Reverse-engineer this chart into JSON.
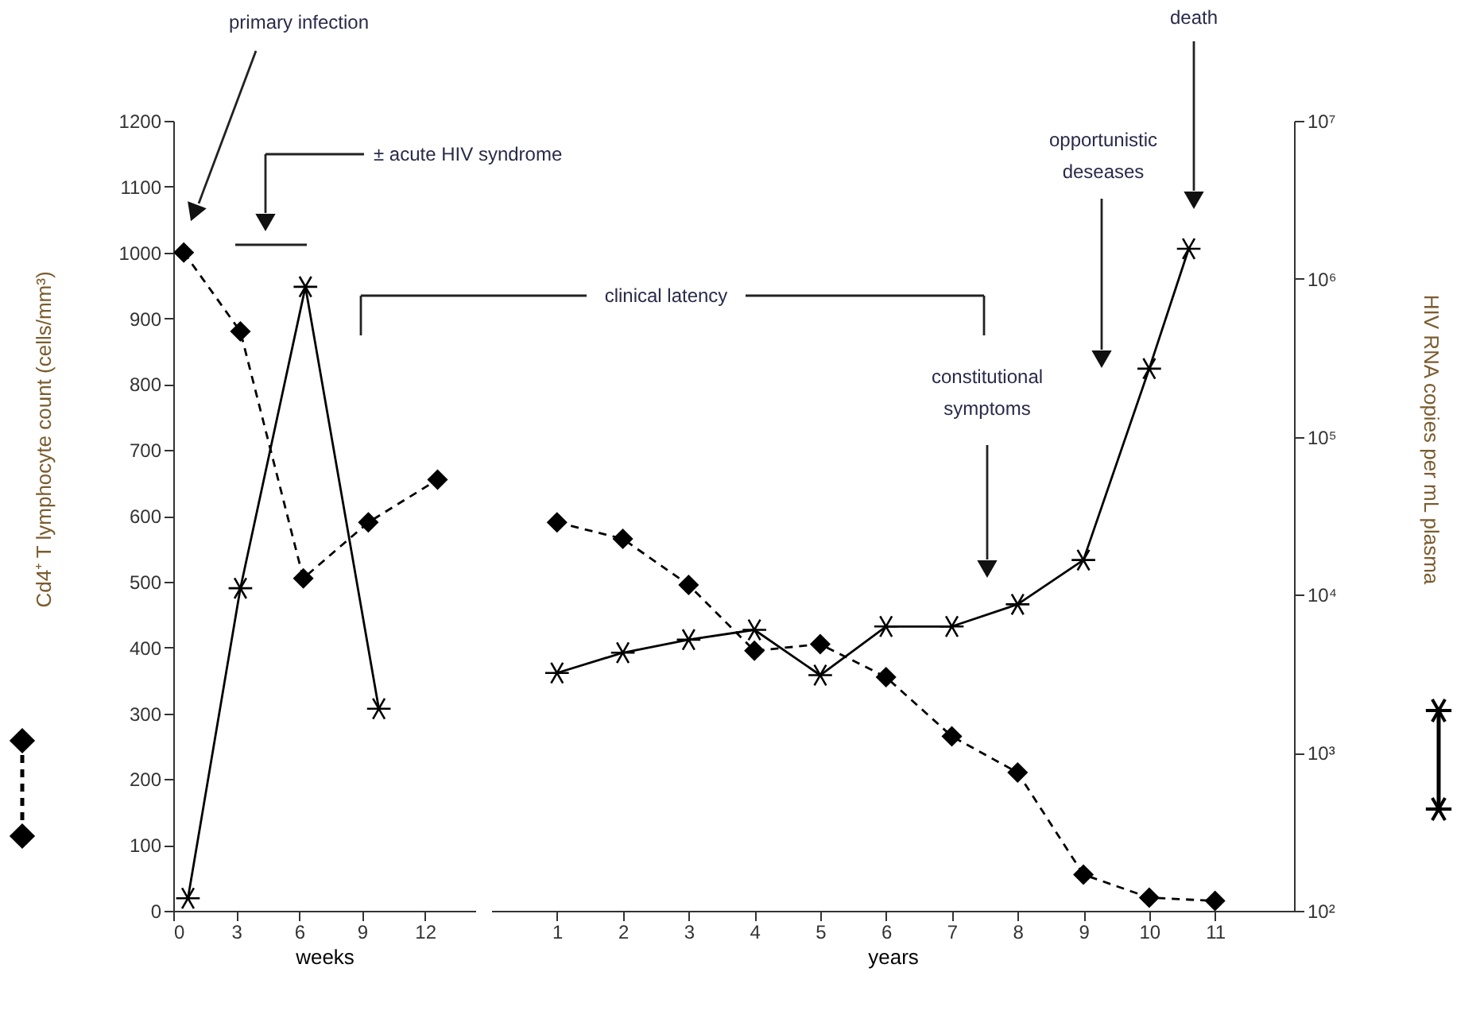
{
  "chart_data": [
    {
      "type": "line",
      "xlabel": "weeks",
      "ylabel": "Cd4⁺ T lymphocyte count (cells/mm³)",
      "xlim": [
        0,
        14.4
      ],
      "xticks": [
        0,
        3,
        6,
        9,
        12
      ],
      "ylim": [
        0,
        1200
      ],
      "yticks": [
        0,
        100,
        200,
        300,
        400,
        500,
        600,
        700,
        800,
        900,
        1000,
        1100,
        1200
      ],
      "y2lim": [
        100,
        10000000
      ],
      "log": "y2",
      "annotations": [
        "primary infection",
        "± acute HIV syndrome"
      ],
      "series": [
        {
          "color": "#000000",
          "marker": "diamond",
          "line_style": "dashed",
          "x": [
            0.5,
            3.2,
            6.2,
            9.3,
            12.6
          ],
          "values": [
            1000,
            880,
            505,
            590,
            655
          ]
        },
        {
          "color": "#000000",
          "marker": "cross",
          "line_style": "solid",
          "axis": "y2",
          "x": [
            0.7,
            3.2,
            6.3,
            9.8
          ],
          "values": [
            120,
            11000,
            890000,
            1900
          ]
        }
      ]
    },
    {
      "type": "line",
      "xlabel": "years",
      "y2label": "HIV RNA copies per mL plasma",
      "xlim": [
        0,
        12.2
      ],
      "xticks": [
        1,
        2,
        3,
        4,
        5,
        6,
        7,
        8,
        9,
        10,
        11
      ],
      "ylim": [
        0,
        1200
      ],
      "y2lim": [
        100,
        10000000
      ],
      "y2ticks": [
        {
          "value": 100,
          "label": "10²"
        },
        {
          "value": 1000,
          "label": "10³"
        },
        {
          "value": 10000,
          "label": "10⁴"
        },
        {
          "value": 100000,
          "label": "10⁵"
        },
        {
          "value": 1000000,
          "label": "10⁶"
        },
        {
          "value": 10000000,
          "label": "10⁷"
        }
      ],
      "log": "y2",
      "annotations": [
        "clinical latency",
        "constitutional symptoms",
        "opportunistic deseases",
        "death"
      ],
      "series": [
        {
          "color": "#000000",
          "marker": "diamond",
          "line_style": "dashed",
          "x": [
            1,
            2,
            3,
            4,
            5,
            6,
            7,
            8,
            9,
            10,
            11
          ],
          "values": [
            590,
            565,
            495,
            395,
            405,
            355,
            265,
            210,
            55,
            20,
            15
          ]
        },
        {
          "color": "#000000",
          "marker": "cross",
          "line_style": "solid",
          "axis": "y2",
          "x": [
            1,
            2,
            3,
            4,
            5,
            6,
            7,
            8,
            9,
            10,
            10.6
          ],
          "values": [
            3200,
            4300,
            5200,
            6000,
            3100,
            6300,
            6300,
            8700,
            16600,
            270000,
            1550000
          ]
        }
      ]
    }
  ]
}
